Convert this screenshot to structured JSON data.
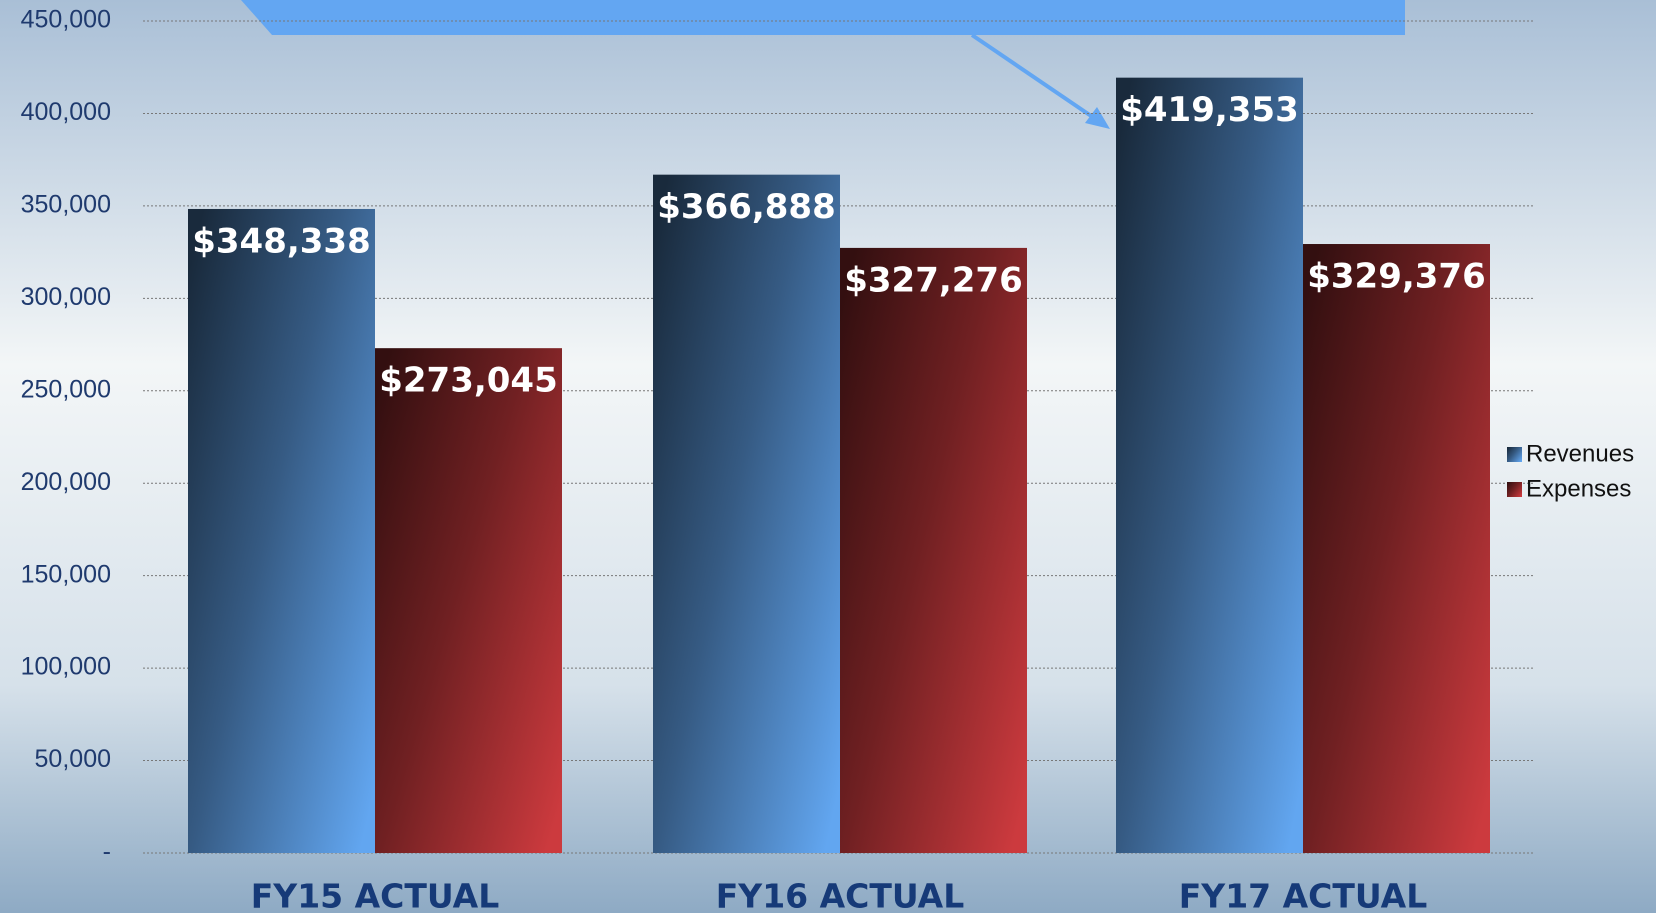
{
  "chart_data": {
    "type": "bar",
    "categories": [
      "FY15 ACTUAL",
      "FY16 ACTUAL",
      "FY17 ACTUAL"
    ],
    "series": [
      {
        "name": "Revenues",
        "color": "#62a6f0",
        "values": [
          348338,
          366888,
          419353
        ],
        "value_labels": [
          "$348,338",
          "$366,888",
          "$419,353"
        ]
      },
      {
        "name": "Expenses",
        "color": "#cc3a3e",
        "values": [
          273045,
          327276,
          329376
        ],
        "value_labels": [
          "$273,045",
          "$327,276",
          "$329,376"
        ]
      }
    ],
    "ylim": [
      0,
      450000
    ],
    "yticks": [
      {
        "value": 0,
        "label": "-"
      },
      {
        "value": 50000,
        "label": "50,000"
      },
      {
        "value": 100000,
        "label": "100,000"
      },
      {
        "value": 150000,
        "label": "150,000"
      },
      {
        "value": 200000,
        "label": "200,000"
      },
      {
        "value": 250000,
        "label": "250,000"
      },
      {
        "value": 300000,
        "label": "300,000"
      },
      {
        "value": 350000,
        "label": "350,000"
      },
      {
        "value": 400000,
        "label": "400,000"
      },
      {
        "value": 450000,
        "label": "450,000"
      }
    ],
    "grid": true,
    "legend": "right"
  }
}
